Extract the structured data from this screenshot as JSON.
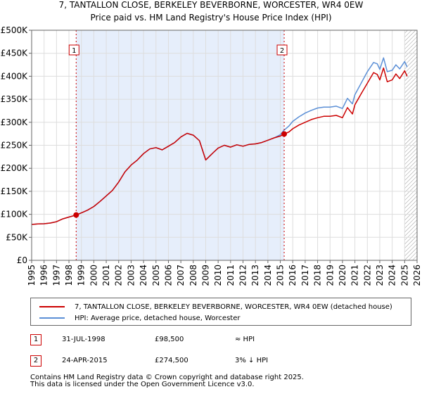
{
  "chart_data": {
    "type": "line",
    "title": "7, TANTALLON CLOSE, BERKELEY BEVERBORNE, WORCESTER, WR4 0EW",
    "subtitle": "Price paid vs. HM Land Registry's House Price Index (HPI)",
    "xlabel": "",
    "ylabel": "",
    "xlim": [
      1995,
      2026
    ],
    "ylim": [
      0,
      500000
    ],
    "x_ticks": [
      1995,
      1996,
      1997,
      1998,
      1999,
      2000,
      2001,
      2002,
      2003,
      2004,
      2005,
      2006,
      2007,
      2008,
      2009,
      2010,
      2011,
      2012,
      2013,
      2014,
      2015,
      2016,
      2017,
      2018,
      2019,
      2020,
      2021,
      2022,
      2023,
      2024,
      2025,
      2026
    ],
    "y_ticks": [
      0,
      50000,
      100000,
      150000,
      200000,
      250000,
      300000,
      350000,
      400000,
      450000,
      500000
    ],
    "y_tick_labels": [
      "£0",
      "£50K",
      "£100K",
      "£150K",
      "£200K",
      "£250K",
      "£300K",
      "£350K",
      "£400K",
      "£450K",
      "£500K"
    ],
    "grid": true,
    "shaded_period": [
      1998.58,
      2015.31
    ],
    "hatched_after": 2025.0,
    "series": [
      {
        "name": "7, TANTALLON CLOSE, BERKELEY BEVERBORNE, WORCESTER, WR4 0EW (detached house)",
        "color": "#cc0000",
        "x": [
          1995.0,
          1995.5,
          1996.0,
          1996.5,
          1997.0,
          1997.5,
          1998.0,
          1998.58,
          1999.0,
          1999.5,
          2000.0,
          2000.5,
          2001.0,
          2001.5,
          2002.0,
          2002.5,
          2003.0,
          2003.5,
          2004.0,
          2004.5,
          2005.0,
          2005.5,
          2006.0,
          2006.5,
          2007.0,
          2007.5,
          2008.0,
          2008.5,
          2009.0,
          2009.3,
          2009.6,
          2010.0,
          2010.5,
          2011.0,
          2011.5,
          2012.0,
          2012.5,
          2013.0,
          2013.5,
          2014.0,
          2014.5,
          2015.0,
          2015.31,
          2015.7,
          2016.0,
          2016.5,
          2017.0,
          2017.5,
          2018.0,
          2018.5,
          2019.0,
          2019.5,
          2020.0,
          2020.4,
          2020.8,
          2021.0,
          2021.5,
          2022.0,
          2022.5,
          2022.8,
          2023.0,
          2023.3,
          2023.6,
          2024.0,
          2024.3,
          2024.6,
          2025.0,
          2025.2
        ],
        "y": [
          78000,
          79000,
          79500,
          81000,
          84000,
          90000,
          94000,
          98500,
          103000,
          109000,
          117000,
          128000,
          140000,
          152000,
          170000,
          192000,
          207000,
          218000,
          232000,
          242000,
          245000,
          240000,
          248000,
          256000,
          268000,
          276000,
          272000,
          260000,
          218000,
          226000,
          234000,
          244000,
          250000,
          246000,
          251000,
          248000,
          252000,
          253000,
          256000,
          261000,
          266000,
          270000,
          274500,
          279000,
          286000,
          294000,
          300000,
          306000,
          310000,
          313000,
          313000,
          315000,
          310000,
          332000,
          318000,
          338000,
          362000,
          385000,
          408000,
          404000,
          392000,
          418000,
          388000,
          392000,
          405000,
          395000,
          412000,
          400000
        ]
      },
      {
        "name": "HPI: Average price, detached house, Worcester",
        "color": "#5b8fd6",
        "x": [
          1995.0,
          1995.5,
          1996.0,
          1996.5,
          1997.0,
          1997.5,
          1998.0,
          1998.58,
          1999.0,
          1999.5,
          2000.0,
          2000.5,
          2001.0,
          2001.5,
          2002.0,
          2002.5,
          2003.0,
          2003.5,
          2004.0,
          2004.5,
          2005.0,
          2005.5,
          2006.0,
          2006.5,
          2007.0,
          2007.5,
          2008.0,
          2008.5,
          2009.0,
          2009.3,
          2009.6,
          2010.0,
          2010.5,
          2011.0,
          2011.5,
          2012.0,
          2012.5,
          2013.0,
          2013.5,
          2014.0,
          2014.5,
          2015.0,
          2015.31,
          2015.7,
          2016.0,
          2016.5,
          2017.0,
          2017.5,
          2018.0,
          2018.5,
          2019.0,
          2019.5,
          2020.0,
          2020.4,
          2020.8,
          2021.0,
          2021.5,
          2022.0,
          2022.5,
          2022.8,
          2023.0,
          2023.3,
          2023.6,
          2024.0,
          2024.3,
          2024.6,
          2025.0,
          2025.2
        ],
        "y": [
          78000,
          79000,
          79500,
          81000,
          84000,
          90000,
          94000,
          98500,
          103000,
          109000,
          117000,
          128000,
          140000,
          152000,
          170000,
          192000,
          207000,
          218000,
          232000,
          242000,
          245000,
          240000,
          248000,
          256000,
          268000,
          276000,
          272000,
          260000,
          218000,
          226000,
          234000,
          244000,
          250000,
          246000,
          251000,
          248000,
          252000,
          253000,
          256000,
          261000,
          266000,
          273000,
          283000,
          292000,
          302000,
          312000,
          320000,
          326000,
          331000,
          333000,
          333000,
          335000,
          330000,
          352000,
          340000,
          360000,
          385000,
          410000,
          430000,
          427000,
          415000,
          440000,
          410000,
          413000,
          425000,
          416000,
          432000,
          420000
        ]
      }
    ],
    "sales": [
      {
        "id": "1",
        "date": "31-JUL-1998",
        "x": 1998.58,
        "price": 98500,
        "price_label": "£98,500",
        "hpi_relation": "≈ HPI"
      },
      {
        "id": "2",
        "date": "24-APR-2015",
        "x": 2015.31,
        "price": 274500,
        "price_label": "£274,500",
        "hpi_relation": "3% ↓ HPI"
      }
    ]
  },
  "legend": {
    "property_label": "7, TANTALLON CLOSE, BERKELEY BEVERBORNE, WORCESTER, WR4 0EW (detached house)",
    "hpi_label": "HPI: Average price, detached house, Worcester"
  },
  "footer": {
    "line1": "Contains HM Land Registry data © Crown copyright and database right 2025.",
    "line2": "This data is licensed under the Open Government Licence v3.0."
  }
}
